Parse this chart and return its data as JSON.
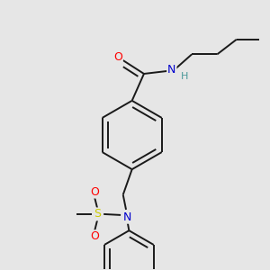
{
  "bg_color": "#e6e6e6",
  "atom_colors": {
    "C": "#000000",
    "N": "#0000cc",
    "O": "#ff0000",
    "S": "#cccc00",
    "H": "#4a9999"
  },
  "bond_color": "#1a1a1a",
  "bond_width": 1.4,
  "dbl_sep": 0.018
}
